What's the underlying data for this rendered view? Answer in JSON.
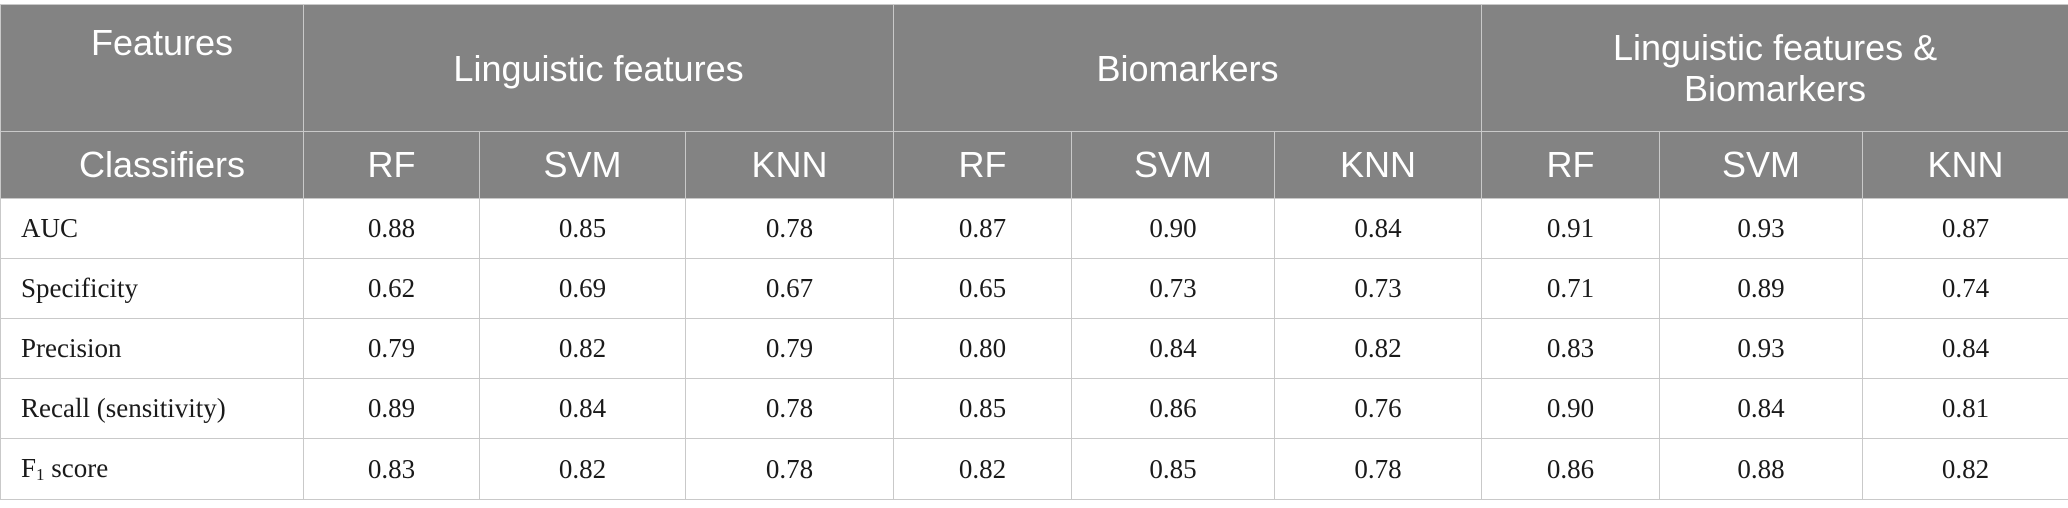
{
  "table": {
    "corner_top": "Features",
    "corner_bottom": "Classifiers",
    "groups": [
      {
        "label_line1": "Linguistic features",
        "label_line2": ""
      },
      {
        "label_line1": "Biomarkers",
        "label_line2": ""
      },
      {
        "label_line1": "Linguistic features &",
        "label_line2": "Biomarkers"
      }
    ],
    "classifiers": [
      "RF",
      "SVM",
      "KNN",
      "RF",
      "SVM",
      "KNN",
      "RF",
      "SVM",
      "KNN"
    ],
    "rows": [
      {
        "metric": "AUC",
        "metric_sub": "",
        "metric_rest": "",
        "values": [
          "0.88",
          "0.85",
          "0.78",
          "0.87",
          "0.90",
          "0.84",
          "0.91",
          "0.93",
          "0.87"
        ]
      },
      {
        "metric": "Specificity",
        "metric_sub": "",
        "metric_rest": "",
        "values": [
          "0.62",
          "0.69",
          "0.67",
          "0.65",
          "0.73",
          "0.73",
          "0.71",
          "0.89",
          "0.74"
        ]
      },
      {
        "metric": "Precision",
        "metric_sub": "",
        "metric_rest": "",
        "values": [
          "0.79",
          "0.82",
          "0.79",
          "0.80",
          "0.84",
          "0.82",
          "0.83",
          "0.93",
          "0.84"
        ]
      },
      {
        "metric": "Recall (sensitivity)",
        "metric_sub": "",
        "metric_rest": "",
        "values": [
          "0.89",
          "0.84",
          "0.78",
          "0.85",
          "0.86",
          "0.76",
          "0.90",
          "0.84",
          "0.81"
        ]
      },
      {
        "metric": "F",
        "metric_sub": "1",
        "metric_rest": " score",
        "values": [
          "0.83",
          "0.82",
          "0.78",
          "0.82",
          "0.85",
          "0.78",
          "0.86",
          "0.88",
          "0.82"
        ]
      }
    ]
  }
}
